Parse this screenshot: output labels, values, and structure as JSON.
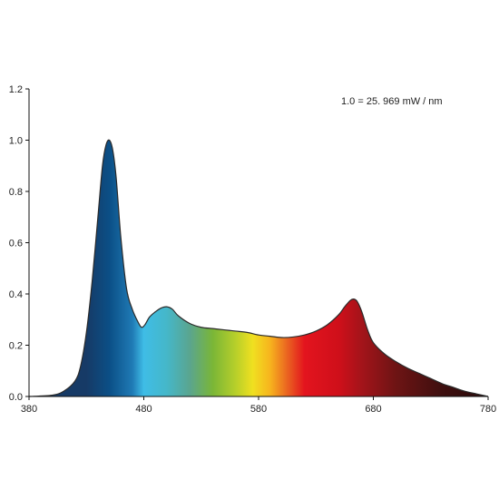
{
  "chart_data": {
    "type": "area",
    "title": "",
    "xlabel": "",
    "ylabel": "",
    "xlim": [
      380,
      780
    ],
    "ylim": [
      0,
      1.2
    ],
    "x_ticks": [
      "380",
      "480",
      "580",
      "680",
      "780"
    ],
    "y_ticks": [
      "0.0",
      "0.2",
      "0.4",
      "0.6",
      "0.8",
      "1.0",
      "1.2"
    ],
    "annotation": "1.0 = 25. 969 mW / nm",
    "grid": false,
    "legend": "none",
    "fill": "wavelength spectrum gradient",
    "series": [
      {
        "x": [
          380,
          400,
          410,
          420,
          425,
          430,
          435,
          440,
          444,
          447,
          450,
          453,
          456,
          460,
          465,
          470,
          475,
          478,
          481,
          485,
          490,
          495,
          500,
          505,
          510,
          520,
          530,
          540,
          550,
          560,
          570,
          580,
          590,
          600,
          610,
          620,
          630,
          640,
          650,
          655,
          660,
          663,
          666,
          670,
          675,
          680,
          690,
          700,
          710,
          720,
          730,
          740,
          750,
          760,
          770,
          780
        ],
        "y": [
          0.0,
          0.005,
          0.02,
          0.06,
          0.12,
          0.25,
          0.45,
          0.7,
          0.9,
          0.98,
          1.0,
          0.96,
          0.85,
          0.62,
          0.42,
          0.34,
          0.29,
          0.27,
          0.28,
          0.31,
          0.33,
          0.345,
          0.35,
          0.34,
          0.315,
          0.285,
          0.27,
          0.265,
          0.26,
          0.255,
          0.25,
          0.24,
          0.235,
          0.23,
          0.232,
          0.24,
          0.255,
          0.28,
          0.32,
          0.35,
          0.375,
          0.38,
          0.37,
          0.33,
          0.26,
          0.21,
          0.165,
          0.135,
          0.11,
          0.09,
          0.07,
          0.05,
          0.035,
          0.02,
          0.01,
          0.0
        ]
      }
    ],
    "gradient_colors": [
      {
        "wavelength": 430,
        "color": "#163a66"
      },
      {
        "wavelength": 450,
        "color": "#0b4f86"
      },
      {
        "wavelength": 470,
        "color": "#1f7ab5"
      },
      {
        "wavelength": 480,
        "color": "#3fbde6"
      },
      {
        "wavelength": 500,
        "color": "#45b7c9"
      },
      {
        "wavelength": 520,
        "color": "#5aa58f"
      },
      {
        "wavelength": 540,
        "color": "#7ab637"
      },
      {
        "wavelength": 560,
        "color": "#b7cf2a"
      },
      {
        "wavelength": 575,
        "color": "#f0e020"
      },
      {
        "wavelength": 590,
        "color": "#f7b41e"
      },
      {
        "wavelength": 605,
        "color": "#ea6420"
      },
      {
        "wavelength": 620,
        "color": "#e3141e"
      },
      {
        "wavelength": 650,
        "color": "#cf0f1a"
      },
      {
        "wavelength": 670,
        "color": "#a3141a"
      },
      {
        "wavelength": 700,
        "color": "#6d1414"
      },
      {
        "wavelength": 740,
        "color": "#3e0f0f"
      },
      {
        "wavelength": 780,
        "color": "#2a0a0a"
      }
    ]
  }
}
